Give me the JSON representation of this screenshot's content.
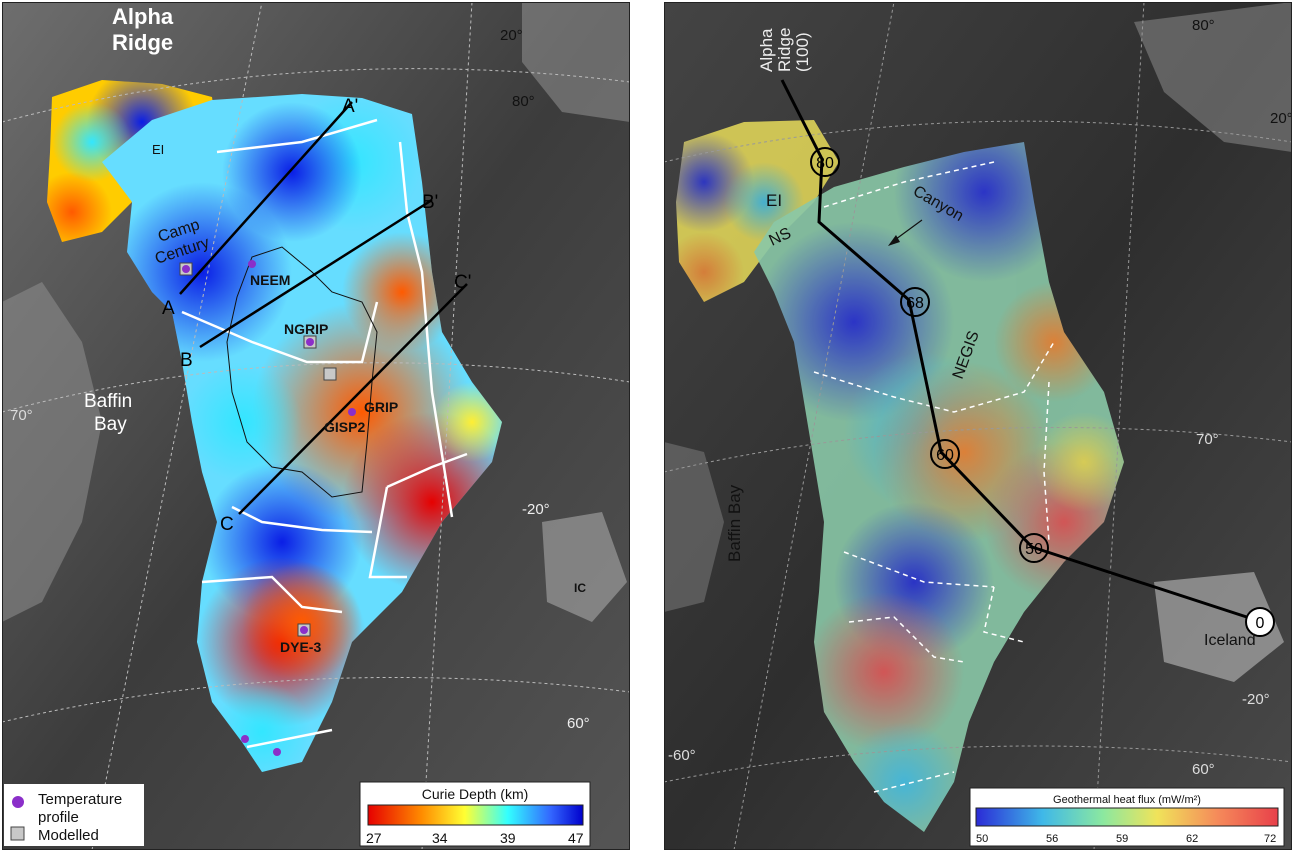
{
  "left_map": {
    "labels": {
      "alpha_ridge_line1": "Alpha",
      "alpha_ridge_line2": "Ridge",
      "ei": "EI",
      "camp_century_line1": "Camp",
      "camp_century_line2": "Century",
      "neem": "NEEM",
      "ngrip": "NGRIP",
      "grip": "GRIP",
      "gisp2": "GISP2",
      "dye3": "DYE-3",
      "baffin_bay_line1": "Baffin",
      "baffin_bay_line2": "Bay",
      "ic": "IC"
    },
    "profile_points": {
      "a": "A",
      "a_prime": "A'",
      "b": "B",
      "b_prime": "B'",
      "c": "C",
      "c_prime": "C'"
    },
    "graticule": {
      "lon_20": "20°",
      "lat_80": "80°",
      "lat_70": "70°",
      "lon_m20": "-20°",
      "lat_60": "60°"
    },
    "legend": {
      "temperature_line1": "Temperature",
      "temperature_line2": "profile",
      "modelled": "Modelled",
      "temperature_color": "#8b2fc9",
      "modelled_color": "#c8c8c8"
    },
    "colorbar": {
      "title": "Curie Depth (km)",
      "ticks": [
        "27",
        "34",
        "39",
        "47"
      ],
      "stops": [
        "#e60000",
        "#ff8c00",
        "#ffff33",
        "#33ffff",
        "#3366ff",
        "#0000cc"
      ]
    }
  },
  "right_map": {
    "labels": {
      "alpha_ridge_line1": "Alpha",
      "alpha_ridge_line2": "Ridge",
      "alpha_ridge_line3": "(100)",
      "ei": "EI",
      "ns": "NS",
      "canyon": "Canyon",
      "negis": "NEGIS",
      "baffin_bay": "Baffin Bay",
      "iceland": "Iceland"
    },
    "track_nodes": [
      "80",
      "68",
      "60",
      "50",
      "0"
    ],
    "graticule": {
      "lat_80": "80°",
      "lon_20": "20°",
      "lat_70": "70°",
      "lon_m20": "-20°",
      "lon_m60": "-60°",
      "lat_60": "60°"
    },
    "colorbar": {
      "title": "Geothermal heat flux (mW/m²)",
      "ticks": [
        "50",
        "56",
        "59",
        "62",
        "72"
      ],
      "stops": [
        "#2b2bd6",
        "#3fb8e8",
        "#8be8a0",
        "#f0e35a",
        "#f58a5a",
        "#e8404a"
      ]
    }
  }
}
